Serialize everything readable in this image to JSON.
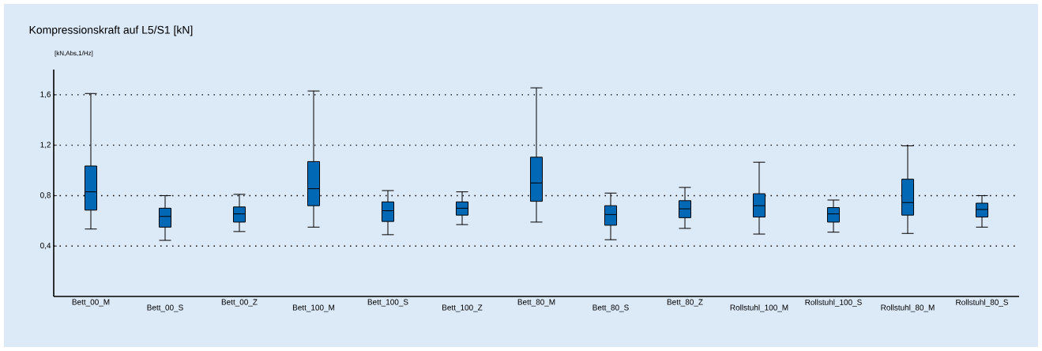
{
  "chart_data": {
    "type": "box",
    "title": "Kompressionskraft auf L5/S1 [kN]",
    "ylabel": "[kN,Abs,1/Hz]",
    "categories": [
      "Bett_00_M",
      "Bett_00_S",
      "Bett_00_Z",
      "Bett_100_M",
      "Bett_100_S",
      "Bett_100_Z",
      "Bett_80_M",
      "Bett_80_S",
      "Bett_80_Z",
      "Rollstuhl_100_M",
      "Rollstuhl_100_S",
      "Rollstuhl_80_M",
      "Rollstuhl_80_S"
    ],
    "boxes": [
      {
        "low": 0.535,
        "q1": 0.685,
        "median": 0.83,
        "q3": 1.035,
        "high": 1.61
      },
      {
        "low": 0.445,
        "q1": 0.55,
        "median": 0.635,
        "q3": 0.7,
        "high": 0.8
      },
      {
        "low": 0.515,
        "q1": 0.59,
        "median": 0.655,
        "q3": 0.71,
        "high": 0.81
      },
      {
        "low": 0.55,
        "q1": 0.72,
        "median": 0.855,
        "q3": 1.07,
        "high": 1.63
      },
      {
        "low": 0.49,
        "q1": 0.595,
        "median": 0.68,
        "q3": 0.75,
        "high": 0.84
      },
      {
        "low": 0.57,
        "q1": 0.645,
        "median": 0.7,
        "q3": 0.75,
        "high": 0.83
      },
      {
        "low": 0.59,
        "q1": 0.755,
        "median": 0.9,
        "q3": 1.105,
        "high": 1.655
      },
      {
        "low": 0.45,
        "q1": 0.565,
        "median": 0.65,
        "q3": 0.72,
        "high": 0.82
      },
      {
        "low": 0.54,
        "q1": 0.625,
        "median": 0.695,
        "q3": 0.76,
        "high": 0.865
      },
      {
        "low": 0.495,
        "q1": 0.63,
        "median": 0.72,
        "q3": 0.815,
        "high": 1.065
      },
      {
        "low": 0.51,
        "q1": 0.59,
        "median": 0.655,
        "q3": 0.705,
        "high": 0.765
      },
      {
        "low": 0.5,
        "q1": 0.645,
        "median": 0.745,
        "q3": 0.93,
        "high": 1.195
      },
      {
        "low": 0.55,
        "q1": 0.63,
        "median": 0.69,
        "q3": 0.74,
        "high": 0.8
      }
    ],
    "color": "#0068b4",
    "ylim": [
      0,
      1.8
    ],
    "yticks": [
      {
        "value": 0.4,
        "label": "0,4"
      },
      {
        "value": 0.8,
        "label": "0,8"
      },
      {
        "value": 1.2,
        "label": "1,2"
      },
      {
        "value": 1.6,
        "label": "1,6"
      }
    ],
    "grid": "y"
  }
}
